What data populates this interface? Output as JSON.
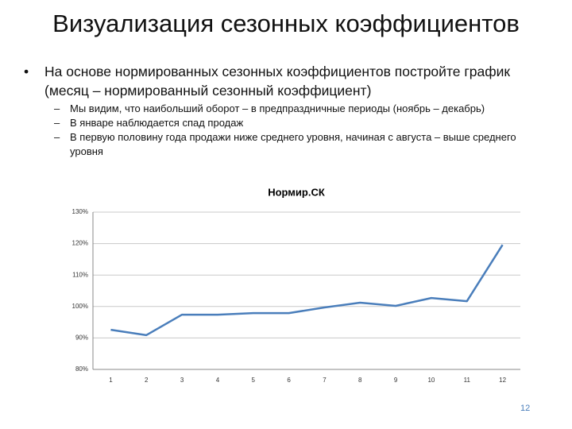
{
  "title": "Визуализация сезонных коэффициентов",
  "bullets": [
    {
      "text": "На основе нормированных сезонных коэффициентов постройте график (месяц – нормированный сезонный коэффициент)",
      "sub": [
        "Мы видим, что наибольший оборот – в предпраздничные периоды (ноябрь – декабрь)",
        "В январе наблюдается спад продаж",
        "В первую половину года продажи ниже среднего уровня, начиная с августа – выше среднего уровня"
      ]
    }
  ],
  "chart_data": {
    "type": "line",
    "title": "Нормир.СК",
    "categories": [
      "1",
      "2",
      "3",
      "4",
      "5",
      "6",
      "7",
      "8",
      "9",
      "10",
      "11",
      "12"
    ],
    "series": [
      {
        "name": "Нормир.СК",
        "color": "#4a7ebb",
        "values": [
          92.6,
          90.9,
          97.4,
          97.4,
          97.9,
          97.9,
          99.7,
          101.2,
          100.2,
          102.7,
          101.7,
          119.6
        ]
      }
    ],
    "ylim": [
      80,
      130
    ],
    "yticks": [
      {
        "value": 80,
        "label": "80%"
      },
      {
        "value": 90,
        "label": "90%"
      },
      {
        "value": 100,
        "label": "100%"
      },
      {
        "value": 110,
        "label": "110%"
      },
      {
        "value": 120,
        "label": "120%"
      },
      {
        "value": 130,
        "label": "130%"
      }
    ],
    "grid": true
  },
  "page_number": "12"
}
